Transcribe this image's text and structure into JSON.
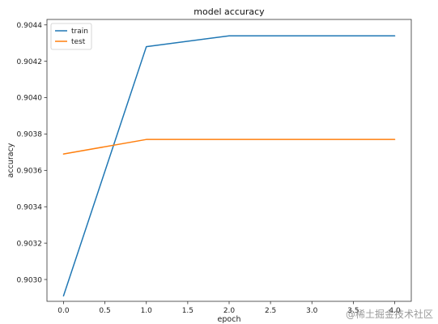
{
  "chart_data": {
    "type": "line",
    "title": "model accuracy",
    "xlabel": "epoch",
    "ylabel": "accuracy",
    "x": [
      0,
      1,
      2,
      3,
      4
    ],
    "xlim": [
      -0.2,
      4.2
    ],
    "ylim": [
      0.90288,
      0.90443
    ],
    "xticks": [
      0.0,
      0.5,
      1.0,
      1.5,
      2.0,
      2.5,
      3.0,
      3.5,
      4.0
    ],
    "xtick_labels": [
      "0.0",
      "0.5",
      "1.0",
      "1.5",
      "2.0",
      "2.5",
      "3.0",
      "3.5",
      "4.0"
    ],
    "yticks": [
      0.903,
      0.9032,
      0.9034,
      0.9036,
      0.9038,
      0.904,
      0.9042,
      0.9044
    ],
    "ytick_labels": [
      "0.9030",
      "0.9032",
      "0.9034",
      "0.9036",
      "0.9038",
      "0.9040",
      "0.9042",
      "0.9044"
    ],
    "series": [
      {
        "name": "train",
        "color": "#1f77b4",
        "values": [
          0.90291,
          0.90428,
          0.90434,
          0.90434,
          0.90434
        ]
      },
      {
        "name": "test",
        "color": "#ff7f0e",
        "values": [
          0.90369,
          0.90377,
          0.90377,
          0.90377,
          0.90377
        ]
      }
    ],
    "legend": "top-left",
    "grid": false
  },
  "watermark": {
    "text": "@稀土掘金技术社区"
  }
}
